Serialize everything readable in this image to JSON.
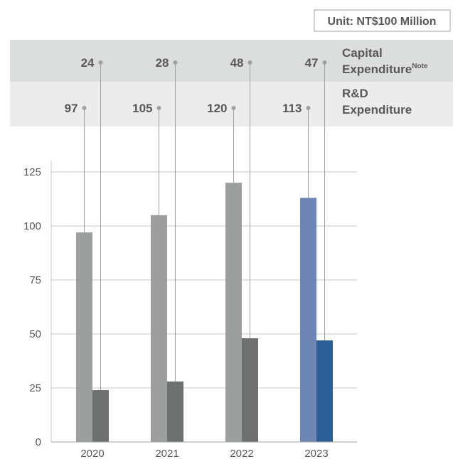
{
  "unit_label": "Unit: NT$100 Million",
  "chart_data": {
    "type": "bar",
    "categories": [
      "2020",
      "2021",
      "2022",
      "2023"
    ],
    "series": [
      {
        "name": "R&D Expenditure",
        "values": [
          97,
          105,
          120,
          113
        ]
      },
      {
        "name": "Capital Expenditure",
        "values": [
          24,
          28,
          48,
          47
        ]
      }
    ],
    "series_label_lines": [
      {
        "lines": [
          "R&D",
          "Expenditure"
        ],
        "superscript": ""
      },
      {
        "lines": [
          "Capital",
          "Expenditure"
        ],
        "superscript": "Note"
      }
    ],
    "data_labels": {
      "R&D Expenditure": [
        "97",
        "105",
        "120",
        "113"
      ],
      "Capital Expenditure": [
        "24",
        "28",
        "48",
        "47"
      ]
    },
    "y_ticks": [
      0,
      25,
      50,
      75,
      100,
      125
    ],
    "ylim": [
      0,
      140
    ],
    "grid": true,
    "highlight_category": "2023",
    "colors": {
      "rd": "#9d9e9e",
      "capex": "#6f7070",
      "rd_highlight": "#6e86b4",
      "capex_highlight": "#2d5f96",
      "band_capex": "#dcdddd",
      "band_rd": "#ececec",
      "grid": "#c8c8c8",
      "text": "#595757",
      "connector": "#9fa0a0"
    }
  }
}
